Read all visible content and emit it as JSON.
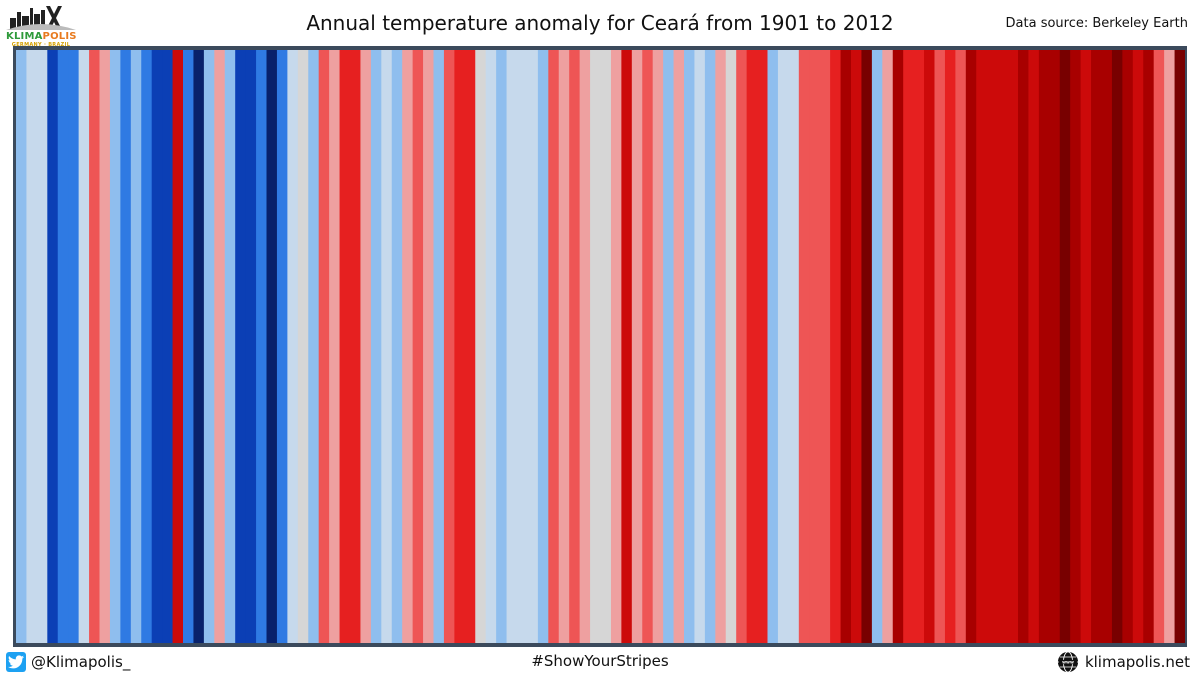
{
  "header": {
    "title": "Annual temperature anomaly for Ceará from 1901 to 2012",
    "source": "Data source: Berkeley Earth"
  },
  "logo": {
    "word_part1": "KLIMA",
    "word_part2": "POLIS",
    "subtitle": "GERMANY · BRAZIL"
  },
  "footer": {
    "handle": "@Klimapolis_",
    "hashtag": "#ShowYourStripes",
    "website": "klimapolis.net"
  },
  "icons": {
    "twitter": "twitter-bird-icon",
    "globe": "www-globe-icon"
  },
  "colors": {
    "frame": "#3b4a5c",
    "twitter_blue": "#1da1f2",
    "logo_green": "#2e9a3a",
    "logo_orange": "#e87a1e"
  },
  "chart_data": {
    "type": "heatmap",
    "title": "Annual temperature anomaly for Ceará from 1901 to 2012",
    "x_start_year": 1901,
    "x_end_year": 2012,
    "color_scale": {
      "-3": "#08216b",
      "-2": "#0b3fb5",
      "-1": "#2f7ae3",
      "-0.5": "#8fbeee",
      "-0.2": "#c6d9ec",
      "0": "#d6d6d6",
      "0.3": "#eea0a0",
      "0.7": "#ee5555",
      "1": "#e62020",
      "1.5": "#cc0a0a",
      "2": "#a80000",
      "3": "#780000"
    },
    "values": [
      -0.5,
      -0.2,
      -0.2,
      -2,
      -1,
      -1,
      -0.2,
      0.7,
      0.3,
      -0.5,
      -1,
      -0.5,
      -1,
      -2,
      -2,
      1.5,
      -1,
      -3,
      -0.5,
      0.3,
      -0.5,
      -2,
      -2,
      -1,
      -3,
      -1,
      -0.2,
      0,
      -0.5,
      0.7,
      0.3,
      1,
      1,
      0.3,
      -0.5,
      -0.2,
      -0.5,
      0.3,
      0.7,
      0.3,
      -0.5,
      0.7,
      1,
      1,
      0,
      -0.2,
      -0.5,
      -0.2,
      -0.2,
      -0.2,
      -0.5,
      0.7,
      0.3,
      0.7,
      0.3,
      0,
      0,
      0.3,
      1.5,
      0.3,
      0.7,
      0.3,
      -0.5,
      0.3,
      -0.5,
      -0.2,
      -0.5,
      0.3,
      0,
      0.7,
      1,
      1,
      -0.5,
      -0.2,
      -0.2,
      0.7,
      0.7,
      0.7,
      1,
      2,
      1.5,
      3,
      -0.5,
      0.3,
      2,
      1,
      1,
      1.5,
      0.7,
      1,
      0.7,
      2,
      1.5,
      1.5,
      1.5,
      1.5,
      2,
      1.5,
      2,
      2,
      3,
      2,
      1.5,
      2,
      2,
      3,
      2,
      1.5,
      2,
      0.7,
      0.3,
      3
    ]
  }
}
